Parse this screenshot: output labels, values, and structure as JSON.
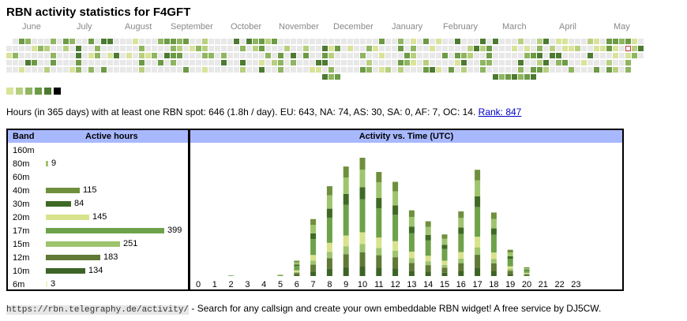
{
  "title": "RBN activity statistics for F4GFT",
  "months": [
    "June",
    "July",
    "August",
    "September",
    "October",
    "November",
    "December",
    "January",
    "February",
    "March",
    "April",
    "May"
  ],
  "colors": {
    "none": "#e8e8e8",
    "c160m": "#c9d98f",
    "c80m": "#a2c46a",
    "c40m": "#6f8f3d",
    "c30m": "#3f6a25",
    "c20m": "#d8e38c",
    "c17m": "#6ea24a",
    "c15m": "#9ec46e",
    "c12m": "#607a36",
    "c10m": "#3d6427",
    "c6m": "#f2f2c8",
    "today": "#cc3333",
    "header": "#a8b8ff",
    "legend": [
      "#d9e39a",
      "#b7cf7f",
      "#8fb560",
      "#6c9a45",
      "#4d7a31",
      "#000000"
    ]
  },
  "summary": {
    "text": "Hours (in 365 days) with at least one RBN spot: 646 (1.8h / day). EU: 643, NA: 74, AS: 30, SA: 0, AF: 7, OC: 14.",
    "rank": "Rank: 847"
  },
  "band_panel": {
    "col_band": "Band",
    "col_hours": "Active hours",
    "bands": [
      {
        "name": "160m",
        "hours": null,
        "color": "c160m"
      },
      {
        "name": "80m",
        "hours": 9,
        "color": "c80m"
      },
      {
        "name": "60m",
        "hours": null,
        "color": "c80m"
      },
      {
        "name": "40m",
        "hours": 115,
        "color": "c40m"
      },
      {
        "name": "30m",
        "hours": 84,
        "color": "c30m"
      },
      {
        "name": "20m",
        "hours": 145,
        "color": "c20m"
      },
      {
        "name": "17m",
        "hours": 399,
        "color": "c17m"
      },
      {
        "name": "15m",
        "hours": 251,
        "color": "c15m"
      },
      {
        "name": "12m",
        "hours": 183,
        "color": "c12m"
      },
      {
        "name": "10m",
        "hours": 134,
        "color": "c10m"
      },
      {
        "name": "6m",
        "hours": 3,
        "color": "c6m"
      }
    ]
  },
  "time_panel": {
    "title": "Activity vs. Time (UTC)",
    "hours": [
      "0",
      "1",
      "2",
      "3",
      "4",
      "5",
      "6",
      "7",
      "8",
      "9",
      "10",
      "11",
      "12",
      "13",
      "14",
      "15",
      "16",
      "17",
      "18",
      "19",
      "20",
      "21",
      "22",
      "23"
    ],
    "totals": [
      0,
      0,
      2,
      0,
      0,
      3,
      14,
      52,
      82,
      100,
      108,
      95,
      86,
      60,
      50,
      38,
      59,
      97,
      58,
      24,
      8,
      0,
      0,
      0
    ]
  },
  "footer": {
    "url": "https://rbn.telegraphy.de/activity/",
    "text": " - Search for any callsign and create your own embeddable RBN widget! A free service by DJ5CW."
  }
}
